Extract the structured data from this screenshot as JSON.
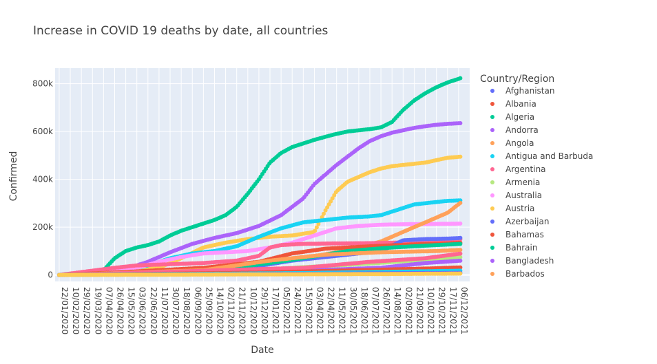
{
  "chart_data": {
    "type": "scatter",
    "title": "Increase in COVID 19 deaths by date, all countries",
    "xlabel": "Date",
    "ylabel": "Confirmed",
    "ylim": [
      -27000,
      865000
    ],
    "y_ticks": [
      0,
      200000,
      400000,
      600000,
      800000
    ],
    "y_tick_labels": [
      "0",
      "200k",
      "400k",
      "600k",
      "800k"
    ],
    "x_range": [
      "2020-01-15",
      "2021-12-25"
    ],
    "x_tick_labels": [
      "22/01/2020",
      "10/02/2020",
      "29/02/2020",
      "19/03/2020",
      "07/04/2020",
      "26/04/2020",
      "15/05/2020",
      "03/06/2020",
      "22/06/2020",
      "11/07/2020",
      "30/07/2020",
      "18/08/2020",
      "06/09/2020",
      "25/09/2020",
      "14/10/2020",
      "02/11/2020",
      "21/11/2020",
      "10/12/2020",
      "29/12/2020",
      "17/01/2021",
      "05/02/2021",
      "24/02/2021",
      "15/03/2021",
      "03/04/2021",
      "22/04/2021",
      "11/05/2021",
      "30/05/2021",
      "18/06/2021",
      "07/07/2021",
      "26/07/2021",
      "14/08/2021",
      "02/09/2021",
      "21/09/2021",
      "10/10/2021",
      "29/10/2021",
      "17/11/2021",
      "06/12/2021"
    ],
    "grid": true,
    "legend": {
      "title": "Country/Region",
      "placement": "right",
      "entries": [
        {
          "name": "Afghanistan",
          "color": "#636efa"
        },
        {
          "name": "Albania",
          "color": "#EF553B"
        },
        {
          "name": "Algeria",
          "color": "#00cc96"
        },
        {
          "name": "Andorra",
          "color": "#ab63fa"
        },
        {
          "name": "Angola",
          "color": "#FFA15A"
        },
        {
          "name": "Antigua and Barbuda",
          "color": "#19d3f3"
        },
        {
          "name": "Argentina",
          "color": "#FF6692"
        },
        {
          "name": "Armenia",
          "color": "#B6E880"
        },
        {
          "name": "Australia",
          "color": "#FF97FF"
        },
        {
          "name": "Austria",
          "color": "#FECB52"
        },
        {
          "name": "Azerbaijan",
          "color": "#636efa"
        },
        {
          "name": "Bahamas",
          "color": "#EF553B"
        },
        {
          "name": "Bahrain",
          "color": "#00cc96"
        },
        {
          "name": "Bangladesh",
          "color": "#ab63fa"
        },
        {
          "name": "Barbados",
          "color": "#FFA15A"
        }
      ]
    },
    "series": [
      {
        "color": "#00cc96",
        "points": [
          [
            "2020-01-22",
            0
          ],
          [
            "2020-03-20",
            5000
          ],
          [
            "2020-04-07",
            20000
          ],
          [
            "2020-04-26",
            70000
          ],
          [
            "2020-05-15",
            100000
          ],
          [
            "2020-06-03",
            115000
          ],
          [
            "2020-06-22",
            125000
          ],
          [
            "2020-07-11",
            140000
          ],
          [
            "2020-07-30",
            165000
          ],
          [
            "2020-08-18",
            185000
          ],
          [
            "2020-09-06",
            200000
          ],
          [
            "2020-09-25",
            215000
          ],
          [
            "2020-10-14",
            230000
          ],
          [
            "2020-11-02",
            250000
          ],
          [
            "2020-11-21",
            285000
          ],
          [
            "2020-12-10",
            340000
          ],
          [
            "2020-12-29",
            400000
          ],
          [
            "2021-01-17",
            470000
          ],
          [
            "2021-02-05",
            510000
          ],
          [
            "2021-02-24",
            535000
          ],
          [
            "2021-03-15",
            550000
          ],
          [
            "2021-04-03",
            565000
          ],
          [
            "2021-04-22",
            578000
          ],
          [
            "2021-05-11",
            590000
          ],
          [
            "2021-05-30",
            600000
          ],
          [
            "2021-06-18",
            605000
          ],
          [
            "2021-07-07",
            610000
          ],
          [
            "2021-07-26",
            617000
          ],
          [
            "2021-08-14",
            640000
          ],
          [
            "2021-09-02",
            690000
          ],
          [
            "2021-09-21",
            730000
          ],
          [
            "2021-10-10",
            760000
          ],
          [
            "2021-10-29",
            785000
          ],
          [
            "2021-11-17",
            805000
          ],
          [
            "2021-12-06",
            820000
          ],
          [
            "2021-12-11",
            825000
          ]
        ]
      },
      {
        "color": "#ab63fa",
        "points": [
          [
            "2020-01-22",
            0
          ],
          [
            "2020-04-07",
            8000
          ],
          [
            "2020-05-15",
            25000
          ],
          [
            "2020-06-22",
            55000
          ],
          [
            "2020-07-30",
            95000
          ],
          [
            "2020-09-06",
            130000
          ],
          [
            "2020-10-14",
            155000
          ],
          [
            "2020-11-21",
            175000
          ],
          [
            "2020-12-29",
            205000
          ],
          [
            "2021-02-05",
            250000
          ],
          [
            "2021-03-15",
            320000
          ],
          [
            "2021-04-03",
            380000
          ],
          [
            "2021-04-22",
            420000
          ],
          [
            "2021-05-11",
            460000
          ],
          [
            "2021-05-30",
            495000
          ],
          [
            "2021-06-18",
            530000
          ],
          [
            "2021-07-07",
            560000
          ],
          [
            "2021-07-26",
            580000
          ],
          [
            "2021-08-14",
            595000
          ],
          [
            "2021-09-02",
            605000
          ],
          [
            "2021-09-21",
            615000
          ],
          [
            "2021-10-10",
            622000
          ],
          [
            "2021-10-29",
            628000
          ],
          [
            "2021-11-17",
            632000
          ],
          [
            "2021-12-11",
            635000
          ]
        ]
      },
      {
        "color": "#FECB52",
        "points": [
          [
            "2020-01-22",
            0
          ],
          [
            "2020-07-11",
            30000
          ],
          [
            "2020-08-18",
            70000
          ],
          [
            "2020-09-25",
            115000
          ],
          [
            "2020-11-02",
            135000
          ],
          [
            "2020-12-10",
            150000
          ],
          [
            "2021-01-17",
            160000
          ],
          [
            "2021-02-24",
            165000
          ],
          [
            "2021-04-03",
            180000
          ],
          [
            "2021-04-22",
            270000
          ],
          [
            "2021-05-11",
            350000
          ],
          [
            "2021-05-30",
            390000
          ],
          [
            "2021-06-18",
            410000
          ],
          [
            "2021-07-07",
            430000
          ],
          [
            "2021-07-26",
            445000
          ],
          [
            "2021-08-14",
            455000
          ],
          [
            "2021-09-02",
            460000
          ],
          [
            "2021-09-21",
            465000
          ],
          [
            "2021-10-10",
            470000
          ],
          [
            "2021-10-29",
            480000
          ],
          [
            "2021-11-17",
            490000
          ],
          [
            "2021-12-11",
            495000
          ]
        ]
      },
      {
        "color": "#19d3f3",
        "points": [
          [
            "2020-01-22",
            0
          ],
          [
            "2020-05-15",
            20000
          ],
          [
            "2020-06-22",
            40000
          ],
          [
            "2020-07-30",
            70000
          ],
          [
            "2020-09-06",
            90000
          ],
          [
            "2020-10-14",
            100000
          ],
          [
            "2020-11-21",
            120000
          ],
          [
            "2020-12-29",
            160000
          ],
          [
            "2021-02-05",
            195000
          ],
          [
            "2021-03-15",
            220000
          ],
          [
            "2021-04-22",
            230000
          ],
          [
            "2021-05-30",
            240000
          ],
          [
            "2021-07-07",
            245000
          ],
          [
            "2021-07-26",
            250000
          ],
          [
            "2021-08-14",
            265000
          ],
          [
            "2021-09-02",
            280000
          ],
          [
            "2021-09-21",
            295000
          ],
          [
            "2021-10-10",
            300000
          ],
          [
            "2021-10-29",
            305000
          ],
          [
            "2021-11-17",
            310000
          ],
          [
            "2021-12-11",
            312000
          ]
        ]
      },
      {
        "color": "#FF97FF",
        "points": [
          [
            "2020-01-22",
            0
          ],
          [
            "2020-06-03",
            30000
          ],
          [
            "2020-07-11",
            55000
          ],
          [
            "2020-08-18",
            75000
          ],
          [
            "2020-09-25",
            90000
          ],
          [
            "2020-11-02",
            95000
          ],
          [
            "2020-12-10",
            100000
          ],
          [
            "2021-01-17",
            115000
          ],
          [
            "2021-02-24",
            135000
          ],
          [
            "2021-04-03",
            165000
          ],
          [
            "2021-05-11",
            195000
          ],
          [
            "2021-06-18",
            205000
          ],
          [
            "2021-07-26",
            210000
          ],
          [
            "2021-09-02",
            212000
          ],
          [
            "2021-10-10",
            213000
          ],
          [
            "2021-11-17",
            214000
          ],
          [
            "2021-12-11",
            215000
          ]
        ]
      },
      {
        "color": "#FFA15A",
        "points": [
          [
            "2020-01-22",
            0
          ],
          [
            "2020-05-15",
            5000
          ],
          [
            "2020-08-18",
            15000
          ],
          [
            "2020-11-02",
            30000
          ],
          [
            "2021-01-17",
            50000
          ],
          [
            "2021-03-15",
            70000
          ],
          [
            "2021-05-11",
            95000
          ],
          [
            "2021-06-18",
            115000
          ],
          [
            "2021-07-26",
            140000
          ],
          [
            "2021-09-02",
            180000
          ],
          [
            "2021-10-10",
            220000
          ],
          [
            "2021-11-17",
            260000
          ],
          [
            "2021-12-11",
            305000
          ]
        ]
      },
      {
        "color": "#FF6692",
        "points": [
          [
            "2020-01-22",
            0
          ],
          [
            "2020-04-26",
            30000
          ],
          [
            "2020-06-03",
            40000
          ],
          [
            "2020-07-30",
            45000
          ],
          [
            "2020-09-25",
            50000
          ],
          [
            "2020-11-21",
            60000
          ],
          [
            "2020-12-29",
            80000
          ],
          [
            "2021-01-17",
            115000
          ],
          [
            "2021-02-05",
            125000
          ],
          [
            "2021-03-15",
            130000
          ],
          [
            "2021-05-11",
            132000
          ],
          [
            "2021-07-07",
            133000
          ],
          [
            "2021-09-02",
            136000
          ],
          [
            "2021-10-29",
            140000
          ],
          [
            "2021-12-11",
            150000
          ]
        ]
      },
      {
        "color": "#636efa",
        "points": [
          [
            "2020-01-22",
            0
          ],
          [
            "2020-09-06",
            10000
          ],
          [
            "2020-12-10",
            30000
          ],
          [
            "2021-02-24",
            60000
          ],
          [
            "2021-05-11",
            80000
          ],
          [
            "2021-07-26",
            100000
          ],
          [
            "2021-09-02",
            145000
          ],
          [
            "2021-10-10",
            150000
          ],
          [
            "2021-11-17",
            152000
          ],
          [
            "2021-12-11",
            155000
          ]
        ]
      },
      {
        "color": "#EF553B",
        "points": [
          [
            "2020-01-22",
            0
          ],
          [
            "2020-06-03",
            15000
          ],
          [
            "2020-09-25",
            30000
          ],
          [
            "2020-12-29",
            55000
          ],
          [
            "2021-02-24",
            90000
          ],
          [
            "2021-04-22",
            110000
          ],
          [
            "2021-07-07",
            120000
          ],
          [
            "2021-09-21",
            128000
          ],
          [
            "2021-11-17",
            132000
          ],
          [
            "2021-12-11",
            135000
          ]
        ]
      },
      {
        "color": "#00cc96",
        "points": [
          [
            "2020-01-22",
            0
          ],
          [
            "2020-10-14",
            20000
          ],
          [
            "2021-01-17",
            50000
          ],
          [
            "2021-03-15",
            70000
          ],
          [
            "2021-05-30",
            100000
          ],
          [
            "2021-08-14",
            115000
          ],
          [
            "2021-10-29",
            125000
          ],
          [
            "2021-12-11",
            130000
          ]
        ]
      },
      {
        "color": "#B6E880",
        "points": [
          [
            "2020-01-22",
            0
          ],
          [
            "2020-11-02",
            10000
          ],
          [
            "2021-02-24",
            30000
          ],
          [
            "2021-06-18",
            45000
          ],
          [
            "2021-09-21",
            60000
          ],
          [
            "2021-12-11",
            75000
          ]
        ]
      },
      {
        "color": "#ab63fa",
        "points": [
          [
            "2020-01-22",
            0
          ],
          [
            "2020-12-10",
            8000
          ],
          [
            "2021-04-03",
            20000
          ],
          [
            "2021-07-26",
            30000
          ],
          [
            "2021-10-10",
            50000
          ],
          [
            "2021-12-11",
            60000
          ]
        ]
      },
      {
        "color": "#FFA15A",
        "points": [
          [
            "2020-01-22",
            0
          ],
          [
            "2020-09-25",
            20000
          ],
          [
            "2021-01-17",
            60000
          ],
          [
            "2021-04-22",
            85000
          ],
          [
            "2021-07-26",
            95000
          ],
          [
            "2021-10-29",
            100000
          ],
          [
            "2021-12-11",
            105000
          ]
        ]
      },
      {
        "color": "#FF6692",
        "points": [
          [
            "2020-01-22",
            0
          ],
          [
            "2021-03-15",
            30000
          ],
          [
            "2021-07-07",
            55000
          ],
          [
            "2021-10-10",
            70000
          ],
          [
            "2021-12-11",
            90000
          ]
        ]
      },
      {
        "color": "#EF553B",
        "points": [
          [
            "2020-01-22",
            0
          ],
          [
            "2020-12-29",
            10000
          ],
          [
            "2021-06-18",
            20000
          ],
          [
            "2021-10-29",
            28000
          ],
          [
            "2021-12-11",
            32000
          ]
        ]
      },
      {
        "color": "#19d3f3",
        "points": [
          [
            "2020-01-22",
            0
          ],
          [
            "2021-03-15",
            8000
          ],
          [
            "2021-09-02",
            14000
          ],
          [
            "2021-12-11",
            18000
          ]
        ]
      },
      {
        "color": "#636efa",
        "points": [
          [
            "2020-01-22",
            0
          ],
          [
            "2021-05-30",
            6000
          ],
          [
            "2021-12-11",
            9000
          ]
        ]
      },
      {
        "color": "#FECB52",
        "points": [
          [
            "2020-01-22",
            0
          ],
          [
            "2021-07-26",
            4000
          ],
          [
            "2021-12-11",
            6000
          ]
        ]
      }
    ]
  }
}
